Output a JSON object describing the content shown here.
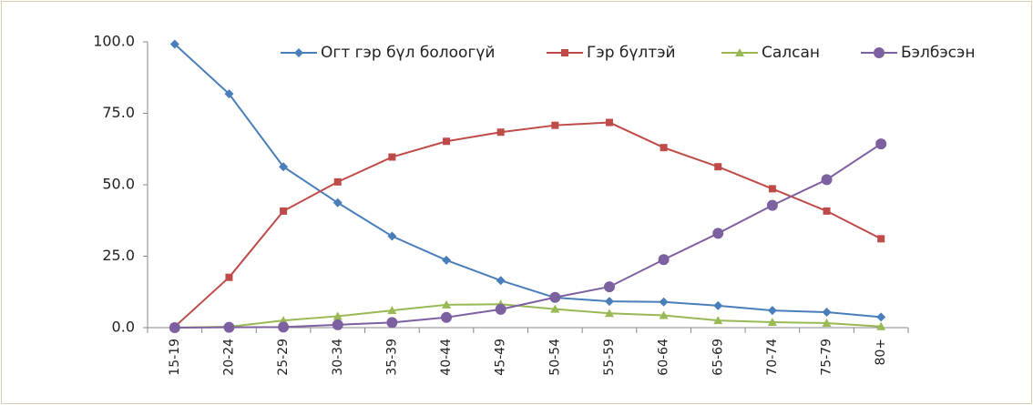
{
  "chart_data": {
    "type": "line",
    "categories": [
      "15-19",
      "20-24",
      "25-29",
      "30-34",
      "35-39",
      "40-44",
      "45-49",
      "50-54",
      "55-59",
      "60-64",
      "65-69",
      "70-74",
      "75-79",
      "80+"
    ],
    "series": [
      {
        "name": "Огт гэр бүл болоогүй",
        "color": "#4a7ebb",
        "marker": "diamond",
        "values": [
          99.2,
          81.8,
          56.3,
          43.7,
          32.0,
          23.6,
          16.5,
          10.5,
          9.2,
          9.0,
          7.7,
          6.0,
          5.4,
          3.7
        ]
      },
      {
        "name": "Гэр бүлтэй",
        "color": "#be4b48",
        "marker": "square",
        "values": [
          0.3,
          17.6,
          40.8,
          51.0,
          59.7,
          65.2,
          68.4,
          70.8,
          71.8,
          63.0,
          56.3,
          48.6,
          40.8,
          31.1
        ]
      },
      {
        "name": "Салсан",
        "color": "#98b954",
        "marker": "triangle",
        "values": [
          0.0,
          0.3,
          2.5,
          4.0,
          6.0,
          8.0,
          8.2,
          6.5,
          5.0,
          4.3,
          2.5,
          1.9,
          1.6,
          0.4
        ]
      },
      {
        "name": "Бэлбэсэн",
        "color": "#7d60a0",
        "marker": "circle",
        "values": [
          0.0,
          0.1,
          0.2,
          1.0,
          1.8,
          3.6,
          6.4,
          10.6,
          14.3,
          23.8,
          33.0,
          42.8,
          51.8,
          64.3
        ]
      }
    ],
    "ylim": [
      0,
      100
    ],
    "yticks": [
      {
        "value": 0,
        "label": "0.0"
      },
      {
        "value": 25,
        "label": "25.0"
      },
      {
        "value": 50,
        "label": "50.0"
      },
      {
        "value": 75,
        "label": "75.0"
      },
      {
        "value": 100,
        "label": "100.0"
      }
    ],
    "grid": false,
    "legend": "top"
  }
}
